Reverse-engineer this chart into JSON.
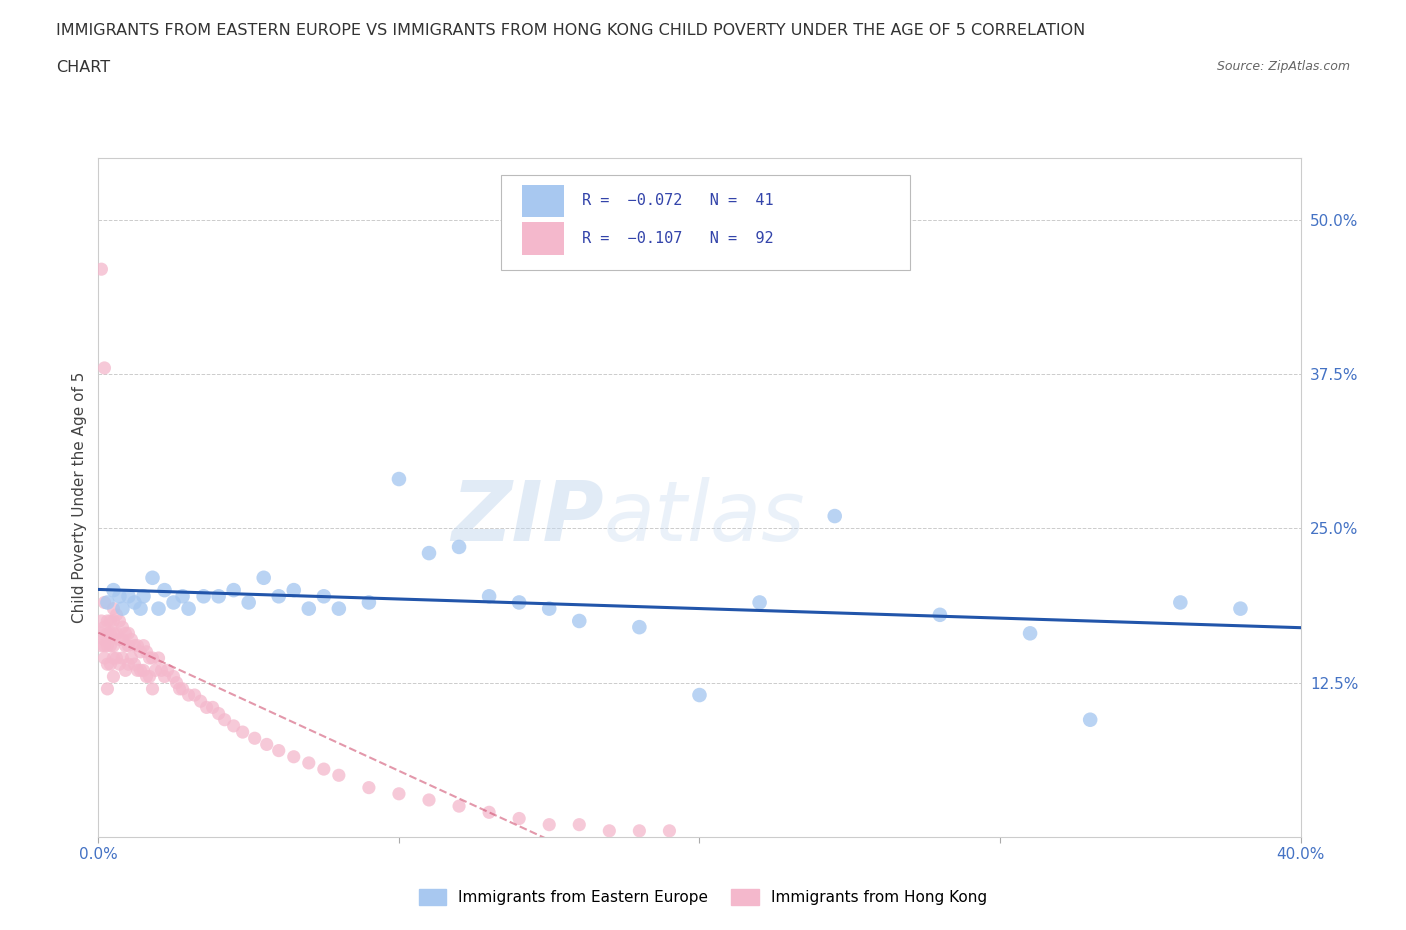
{
  "title_line1": "IMMIGRANTS FROM EASTERN EUROPE VS IMMIGRANTS FROM HONG KONG CHILD POVERTY UNDER THE AGE OF 5 CORRELATION",
  "title_line2": "CHART",
  "source": "Source: ZipAtlas.com",
  "ylabel": "Child Poverty Under the Age of 5",
  "xlim": [
    0.0,
    0.4
  ],
  "ylim": [
    0.0,
    0.55
  ],
  "ytick_positions": [
    0.125,
    0.25,
    0.375,
    0.5
  ],
  "ytick_labels": [
    "12.5%",
    "25.0%",
    "37.5%",
    "50.0%"
  ],
  "r_eastern": -0.072,
  "n_eastern": 41,
  "r_hongkong": -0.107,
  "n_hongkong": 92,
  "color_eastern": "#a8c8f0",
  "color_hongkong": "#f4b8cc",
  "line_color_eastern": "#2255aa",
  "line_color_hongkong": "#cc4466",
  "background_color": "#ffffff",
  "grid_color": "#cccccc",
  "watermark": "ZIPatlas",
  "eastern_x": [
    0.003,
    0.005,
    0.007,
    0.008,
    0.01,
    0.012,
    0.014,
    0.015,
    0.018,
    0.02,
    0.022,
    0.025,
    0.028,
    0.03,
    0.035,
    0.04,
    0.045,
    0.05,
    0.055,
    0.06,
    0.065,
    0.07,
    0.075,
    0.08,
    0.09,
    0.1,
    0.11,
    0.12,
    0.13,
    0.14,
    0.15,
    0.16,
    0.18,
    0.2,
    0.22,
    0.245,
    0.28,
    0.31,
    0.33,
    0.36,
    0.38
  ],
  "eastern_y": [
    0.19,
    0.2,
    0.195,
    0.185,
    0.195,
    0.19,
    0.185,
    0.195,
    0.21,
    0.185,
    0.2,
    0.19,
    0.195,
    0.185,
    0.195,
    0.195,
    0.2,
    0.19,
    0.21,
    0.195,
    0.2,
    0.185,
    0.195,
    0.185,
    0.19,
    0.29,
    0.23,
    0.235,
    0.195,
    0.19,
    0.185,
    0.175,
    0.17,
    0.115,
    0.19,
    0.26,
    0.18,
    0.165,
    0.095,
    0.19,
    0.185
  ],
  "hongkong_x": [
    0.001,
    0.001,
    0.001,
    0.002,
    0.002,
    0.002,
    0.002,
    0.002,
    0.003,
    0.003,
    0.003,
    0.003,
    0.003,
    0.004,
    0.004,
    0.004,
    0.004,
    0.005,
    0.005,
    0.005,
    0.005,
    0.005,
    0.005,
    0.006,
    0.006,
    0.006,
    0.007,
    0.007,
    0.007,
    0.008,
    0.008,
    0.008,
    0.009,
    0.009,
    0.009,
    0.01,
    0.01,
    0.01,
    0.011,
    0.011,
    0.012,
    0.012,
    0.013,
    0.013,
    0.014,
    0.014,
    0.015,
    0.015,
    0.016,
    0.016,
    0.017,
    0.017,
    0.018,
    0.018,
    0.019,
    0.02,
    0.021,
    0.022,
    0.023,
    0.025,
    0.026,
    0.027,
    0.028,
    0.03,
    0.032,
    0.034,
    0.036,
    0.038,
    0.04,
    0.042,
    0.045,
    0.048,
    0.052,
    0.056,
    0.06,
    0.065,
    0.07,
    0.075,
    0.08,
    0.09,
    0.1,
    0.11,
    0.12,
    0.13,
    0.14,
    0.15,
    0.16,
    0.17,
    0.18,
    0.19,
    0.001,
    0.002
  ],
  "hongkong_y": [
    0.175,
    0.165,
    0.155,
    0.19,
    0.17,
    0.16,
    0.155,
    0.145,
    0.175,
    0.165,
    0.155,
    0.14,
    0.12,
    0.175,
    0.165,
    0.155,
    0.14,
    0.185,
    0.175,
    0.165,
    0.155,
    0.145,
    0.13,
    0.18,
    0.165,
    0.145,
    0.175,
    0.16,
    0.14,
    0.17,
    0.16,
    0.145,
    0.165,
    0.155,
    0.135,
    0.165,
    0.155,
    0.14,
    0.16,
    0.145,
    0.155,
    0.14,
    0.155,
    0.135,
    0.15,
    0.135,
    0.155,
    0.135,
    0.15,
    0.13,
    0.145,
    0.13,
    0.145,
    0.12,
    0.135,
    0.145,
    0.135,
    0.13,
    0.135,
    0.13,
    0.125,
    0.12,
    0.12,
    0.115,
    0.115,
    0.11,
    0.105,
    0.105,
    0.1,
    0.095,
    0.09,
    0.085,
    0.08,
    0.075,
    0.07,
    0.065,
    0.06,
    0.055,
    0.05,
    0.04,
    0.035,
    0.03,
    0.025,
    0.02,
    0.015,
    0.01,
    0.01,
    0.005,
    0.005,
    0.005,
    0.46,
    0.38
  ]
}
